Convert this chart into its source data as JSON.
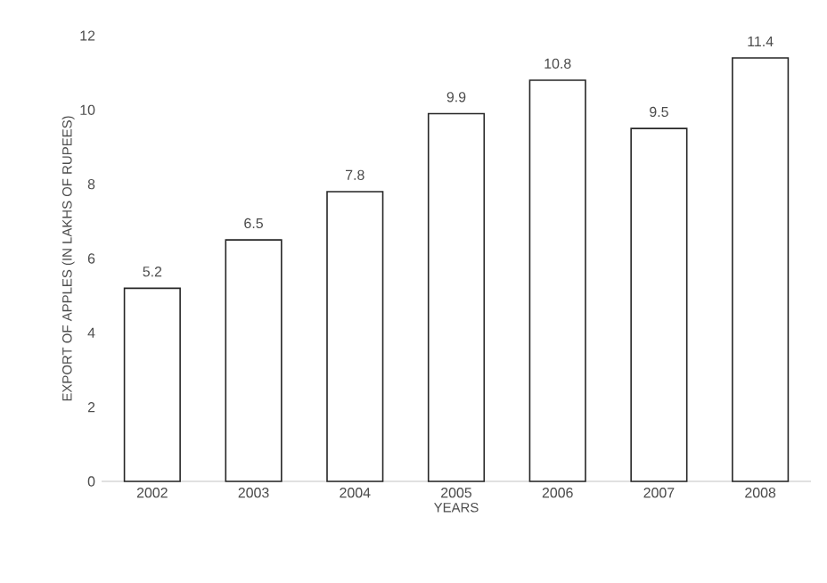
{
  "chart_data": {
    "type": "bar",
    "xlabel": "YEARS",
    "ylabel": "EXPORT OF APPLES (IN LAKHS OF RUPEES)",
    "categories": [
      "2002",
      "2003",
      "2004",
      "2005",
      "2006",
      "2007",
      "2008"
    ],
    "values": [
      5.2,
      6.5,
      7.8,
      9.9,
      10.8,
      9.5,
      11.4
    ],
    "color": "#ffffff",
    "ylim": [
      0,
      12
    ],
    "yticks": [
      0,
      2,
      4,
      6,
      8,
      10,
      12
    ],
    "data_labels": true
  }
}
